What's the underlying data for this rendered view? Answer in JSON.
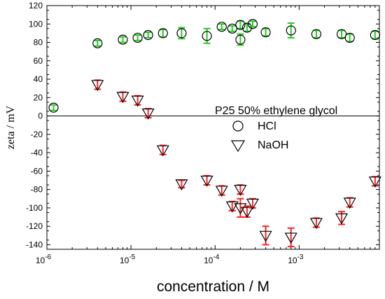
{
  "chart_data": {
    "type": "scatter",
    "title": "P25 50% ethylene glycol",
    "xlabel": "concentration / M",
    "ylabel": "zeta / mV",
    "xscale": "log",
    "xlim": [
      1e-06,
      0.009
    ],
    "ylim": [
      -145,
      120
    ],
    "x_ticks": [
      {
        "value": 1e-06,
        "base": "10",
        "exp": "-6"
      },
      {
        "value": 1e-05,
        "base": "10",
        "exp": "-5"
      },
      {
        "value": 0.0001,
        "base": "10",
        "exp": "-4"
      },
      {
        "value": 0.001,
        "base": "10",
        "exp": "-3"
      }
    ],
    "y_ticks": [
      -140,
      -120,
      -100,
      -80,
      -60,
      -40,
      -20,
      0,
      20,
      40,
      60,
      80,
      100,
      120
    ],
    "zero_line": true,
    "legend": {
      "placement": "center-right",
      "entries": [
        "HCl",
        "NaOH"
      ]
    },
    "series": [
      {
        "name": "HCl",
        "marker": "circle",
        "error_color": "#22cc22",
        "points": [
          {
            "x": 1.2e-06,
            "y": 9,
            "err": 3
          },
          {
            "x": 4e-06,
            "y": 79,
            "err": 3
          },
          {
            "x": 8e-06,
            "y": 83,
            "err": 3
          },
          {
            "x": 1.2e-05,
            "y": 85,
            "err": 3
          },
          {
            "x": 1.6e-05,
            "y": 88,
            "err": 3
          },
          {
            "x": 2.4e-05,
            "y": 90,
            "err": 4
          },
          {
            "x": 4e-05,
            "y": 90,
            "err": 6
          },
          {
            "x": 8e-05,
            "y": 87,
            "err": 8
          },
          {
            "x": 0.00012,
            "y": 97,
            "err": 3
          },
          {
            "x": 0.00016,
            "y": 95,
            "err": 3
          },
          {
            "x": 0.0002,
            "y": 83,
            "err": 6
          },
          {
            "x": 0.0002,
            "y": 99,
            "err": 4
          },
          {
            "x": 0.00024,
            "y": 96,
            "err": 4
          },
          {
            "x": 0.00028,
            "y": 100,
            "err": 3
          },
          {
            "x": 0.0004,
            "y": 91,
            "err": 4
          },
          {
            "x": 0.0008,
            "y": 93,
            "err": 8
          },
          {
            "x": 0.0016,
            "y": 89,
            "err": 4
          },
          {
            "x": 0.0032,
            "y": 89,
            "err": 4
          },
          {
            "x": 0.004,
            "y": 85,
            "err": 4
          },
          {
            "x": 0.008,
            "y": 88,
            "err": 4
          }
        ]
      },
      {
        "name": "NaOH",
        "marker": "triangle-down",
        "error_color": "#ff2222",
        "points": [
          {
            "x": 4e-06,
            "y": 34,
            "err": 5
          },
          {
            "x": 8e-06,
            "y": 21,
            "err": 5
          },
          {
            "x": 1.2e-05,
            "y": 17,
            "err": 5
          },
          {
            "x": 1.6e-05,
            "y": 3,
            "err": 5
          },
          {
            "x": 2.4e-05,
            "y": -37,
            "err": 5
          },
          {
            "x": 4e-05,
            "y": -74,
            "err": 4
          },
          {
            "x": 8e-05,
            "y": -70,
            "err": 5
          },
          {
            "x": 0.00012,
            "y": -81,
            "err": 5
          },
          {
            "x": 0.00016,
            "y": -98,
            "err": 5
          },
          {
            "x": 0.0002,
            "y": -80,
            "err": 5
          },
          {
            "x": 0.0002,
            "y": -100,
            "err": 10
          },
          {
            "x": 0.00024,
            "y": -104,
            "err": 6
          },
          {
            "x": 0.00028,
            "y": -95,
            "err": 5
          },
          {
            "x": 0.0004,
            "y": -130,
            "err": 10
          },
          {
            "x": 0.0008,
            "y": -132,
            "err": 10
          },
          {
            "x": 0.0016,
            "y": -116,
            "err": 5
          },
          {
            "x": 0.0032,
            "y": -111,
            "err": 7
          },
          {
            "x": 0.004,
            "y": -94,
            "err": 5
          },
          {
            "x": 0.008,
            "y": -71,
            "err": 5
          }
        ]
      }
    ]
  }
}
